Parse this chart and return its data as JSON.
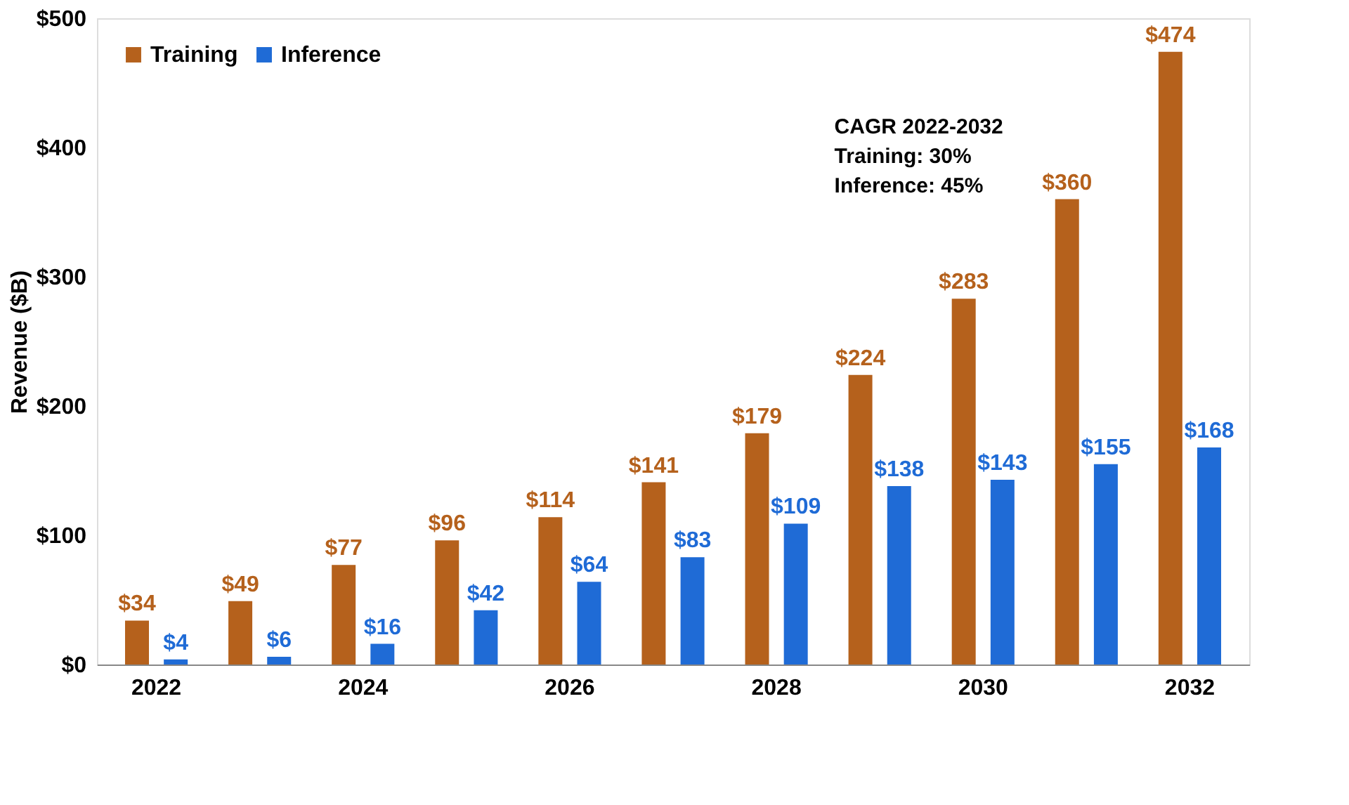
{
  "chart_data": {
    "type": "bar",
    "ylabel": "Revenue ($B)",
    "categories": [
      "2022",
      null,
      "2024",
      null,
      "2026",
      null,
      "2028",
      null,
      "2030",
      null,
      "2032"
    ],
    "series": [
      {
        "name": "Training",
        "color": "#b5611c",
        "values": [
          34,
          49,
          77,
          96,
          114,
          141,
          179,
          224,
          283,
          360,
          474
        ],
        "value_labels": [
          "$34",
          "$49",
          "$77",
          "$96",
          "$114",
          "$141",
          "$179",
          "$224",
          "$283",
          "$360",
          "$474"
        ]
      },
      {
        "name": "Inference",
        "color": "#1f6bd6",
        "values": [
          4,
          6,
          16,
          42,
          64,
          83,
          109,
          138,
          143,
          155,
          168
        ],
        "value_labels": [
          "$4",
          "$6",
          "$16",
          "$42",
          "$64",
          "$83",
          "$109",
          "$138",
          "$143",
          "$155",
          "$168"
        ]
      }
    ],
    "ylim": [
      0,
      500
    ],
    "yticks": [
      {
        "value": 0,
        "label": "$0"
      },
      {
        "value": 100,
        "label": "$100"
      },
      {
        "value": 200,
        "label": "$200"
      },
      {
        "value": 300,
        "label": "$300"
      },
      {
        "value": 400,
        "label": "$400"
      },
      {
        "value": 500,
        "label": "$500"
      }
    ],
    "grid": false,
    "legend": "top left",
    "annotations": [
      "CAGR 2022-2032",
      "Training: 30%",
      "Inference: 45%"
    ]
  }
}
